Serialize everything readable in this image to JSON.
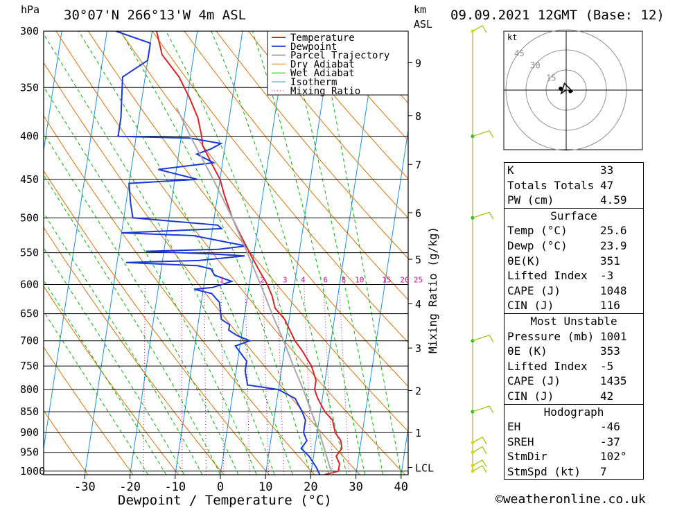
{
  "header": {
    "title": "30°07'N  266°13'W  4m  ASL",
    "date": "09.09.2021  12GMT  (Base: 12)",
    "pressure_unit": "hPa",
    "km_unit": "km",
    "asl_unit": "ASL"
  },
  "footer": "©weatheronline.co.uk",
  "colors": {
    "temperature": "#e02020",
    "dewpoint": "#1838d8",
    "parcel": "#a8a8a8",
    "dry_adiabat": "#e07000",
    "wet_adiabat": "#00b800",
    "isotherm": "#1890e8",
    "mixing_ratio": "#d0108a"
  },
  "legend": [
    "Temperature",
    "Dewpoint",
    "Parcel Trajectory",
    "Dry Adiabat",
    "Wet Adiabat",
    "Isotherm",
    "Mixing Ratio"
  ],
  "chart_data": {
    "type": "line",
    "xlabel": "Dewpoint / Temperature (°C)",
    "ylabel_right": "Mixing Ratio (g/kg)",
    "x_ticks": [
      -30,
      -20,
      -10,
      0,
      10,
      20,
      30,
      40
    ],
    "pressure_levels": [
      300,
      350,
      400,
      450,
      500,
      550,
      600,
      650,
      700,
      750,
      800,
      850,
      900,
      950,
      1000
    ],
    "km_ticks": [
      {
        "km": "1",
        "p": 900
      },
      {
        "km": "2",
        "p": 802
      },
      {
        "km": "3",
        "p": 714
      },
      {
        "km": "4",
        "p": 632
      },
      {
        "km": "5",
        "p": 560
      },
      {
        "km": "6",
        "p": 493
      },
      {
        "km": "7",
        "p": 432
      },
      {
        "km": "8",
        "p": 378
      },
      {
        "km": "9",
        "p": 327
      },
      {
        "km": "LCL",
        "p": 990
      }
    ],
    "mixing_ratio_labels": [
      {
        "w": "1",
        "t": -6
      },
      {
        "w": "2",
        "t": 3
      },
      {
        "w": "3",
        "t": 8
      },
      {
        "w": "4",
        "t": 12
      },
      {
        "w": "6",
        "t": 17
      },
      {
        "w": "8",
        "t": 21
      },
      {
        "w": "10",
        "t": 24
      },
      {
        "w": "15",
        "t": 30
      },
      {
        "w": "20",
        "t": 34
      },
      {
        "w": "25",
        "t": 37
      }
    ],
    "series": [
      {
        "name": "Temperature",
        "points": [
          [
            1010,
            23
          ],
          [
            1000,
            26
          ],
          [
            980,
            26
          ],
          [
            960,
            25
          ],
          [
            940,
            26
          ],
          [
            920,
            25.5
          ],
          [
            900,
            24
          ],
          [
            870,
            23
          ],
          [
            850,
            21
          ],
          [
            820,
            19
          ],
          [
            800,
            18
          ],
          [
            780,
            18
          ],
          [
            750,
            16.5
          ],
          [
            720,
            14
          ],
          [
            700,
            12
          ],
          [
            660,
            9
          ],
          [
            640,
            6.5
          ],
          [
            620,
            5.5
          ],
          [
            600,
            4
          ],
          [
            580,
            2
          ],
          [
            560,
            0
          ],
          [
            550,
            -1
          ],
          [
            520,
            -4
          ],
          [
            500,
            -6
          ],
          [
            470,
            -8.5
          ],
          [
            450,
            -10
          ],
          [
            430,
            -12.5
          ],
          [
            410,
            -15
          ],
          [
            400,
            -15.5
          ],
          [
            380,
            -17
          ],
          [
            360,
            -19.5
          ],
          [
            340,
            -22.5
          ],
          [
            320,
            -27
          ],
          [
            300,
            -29
          ]
        ]
      },
      {
        "name": "Dewpoint",
        "points": [
          [
            1010,
            22
          ],
          [
            990,
            21
          ],
          [
            960,
            19
          ],
          [
            940,
            17
          ],
          [
            920,
            18
          ],
          [
            900,
            17
          ],
          [
            870,
            17
          ],
          [
            850,
            16
          ],
          [
            820,
            14
          ],
          [
            800,
            10
          ],
          [
            790,
            3
          ],
          [
            760,
            2
          ],
          [
            740,
            2
          ],
          [
            730,
            1
          ],
          [
            710,
            -1
          ],
          [
            700,
            2
          ],
          [
            690,
            -1
          ],
          [
            680,
            -3
          ],
          [
            670,
            -3
          ],
          [
            660,
            -5
          ],
          [
            630,
            -6
          ],
          [
            615,
            -8
          ],
          [
            608,
            -12
          ],
          [
            605,
            -8
          ],
          [
            595,
            -4
          ],
          [
            585,
            -8
          ],
          [
            575,
            -9
          ],
          [
            570,
            -12
          ],
          [
            565,
            -28
          ],
          [
            562,
            -12
          ],
          [
            555,
            -2
          ],
          [
            552,
            -9
          ],
          [
            548,
            -24
          ],
          [
            545,
            -8
          ],
          [
            540,
            -2
          ],
          [
            525,
            -14
          ],
          [
            521,
            -30
          ],
          [
            515,
            -8
          ],
          [
            510,
            -9
          ],
          [
            500,
            -28
          ],
          [
            480,
            -29
          ],
          [
            455,
            -30
          ],
          [
            450,
            -15
          ],
          [
            438,
            -24
          ],
          [
            430,
            -12
          ],
          [
            420,
            -16
          ],
          [
            414,
            -13
          ],
          [
            408,
            -11
          ],
          [
            402,
            -18
          ],
          [
            400,
            -34
          ],
          [
            380,
            -34
          ],
          [
            340,
            -35
          ],
          [
            325,
            -30
          ],
          [
            318,
            -30
          ],
          [
            310,
            -30
          ],
          [
            300,
            -38
          ]
        ]
      },
      {
        "name": "Parcel Trajectory",
        "points": [
          [
            1010,
            25
          ],
          [
            990,
            24
          ],
          [
            950,
            22.5
          ],
          [
            900,
            20.5
          ],
          [
            850,
            18
          ],
          [
            800,
            15.5
          ],
          [
            750,
            12.5
          ],
          [
            700,
            9.5
          ],
          [
            650,
            6
          ],
          [
            600,
            2.5
          ],
          [
            550,
            -1.5
          ],
          [
            500,
            -6
          ],
          [
            450,
            -11.5
          ],
          [
            400,
            -18
          ],
          [
            370,
            -22
          ]
        ]
      }
    ],
    "hodograph": {
      "unit": "kt",
      "rings": [
        "15",
        "30",
        "45"
      ],
      "points": [
        [
          0,
          0
        ],
        [
          -3,
          -2
        ],
        [
          -1,
          4
        ],
        [
          4,
          -1
        ],
        [
          1,
          0
        ]
      ]
    },
    "wind_barbs": [
      {
        "p": 1000,
        "speed": 5
      },
      {
        "p": 985,
        "speed": 5
      },
      {
        "p": 950,
        "speed": 5
      },
      {
        "p": 925,
        "speed": 5
      },
      {
        "p": 850,
        "speed": 10
      },
      {
        "p": 700,
        "speed": 10
      },
      {
        "p": 500,
        "speed": 10
      },
      {
        "p": 400,
        "speed": 10
      },
      {
        "p": 300,
        "speed": 5
      }
    ]
  },
  "indices": [
    {
      "label": "K",
      "value": "33"
    },
    {
      "label": "Totals Totals",
      "value": "47"
    },
    {
      "label": "PW (cm)",
      "value": "4.59"
    }
  ],
  "surface": {
    "title": "Surface",
    "rows": [
      {
        "label": "Temp (°C)",
        "value": "25.6"
      },
      {
        "label": "Dewp (°C)",
        "value": "23.9"
      },
      {
        "label": "θE(K)",
        "value": "351"
      },
      {
        "label": "Lifted Index",
        "value": "-3"
      },
      {
        "label": "CAPE (J)",
        "value": "1048"
      },
      {
        "label": "CIN (J)",
        "value": "116"
      }
    ]
  },
  "most_unstable": {
    "title": "Most Unstable",
    "rows": [
      {
        "label": "Pressure (mb)",
        "value": "1001"
      },
      {
        "label": "θE (K)",
        "value": "353"
      },
      {
        "label": "Lifted Index",
        "value": "-5"
      },
      {
        "label": "CAPE (J)",
        "value": "1435"
      },
      {
        "label": "CIN (J)",
        "value": "42"
      }
    ]
  },
  "hodograph_table": {
    "title": "Hodograph",
    "rows": [
      {
        "label": "EH",
        "value": "-46"
      },
      {
        "label": "SREH",
        "value": "-37"
      },
      {
        "label": "StmDir",
        "value": "102°"
      },
      {
        "label": "StmSpd (kt)",
        "value": "7"
      }
    ]
  }
}
